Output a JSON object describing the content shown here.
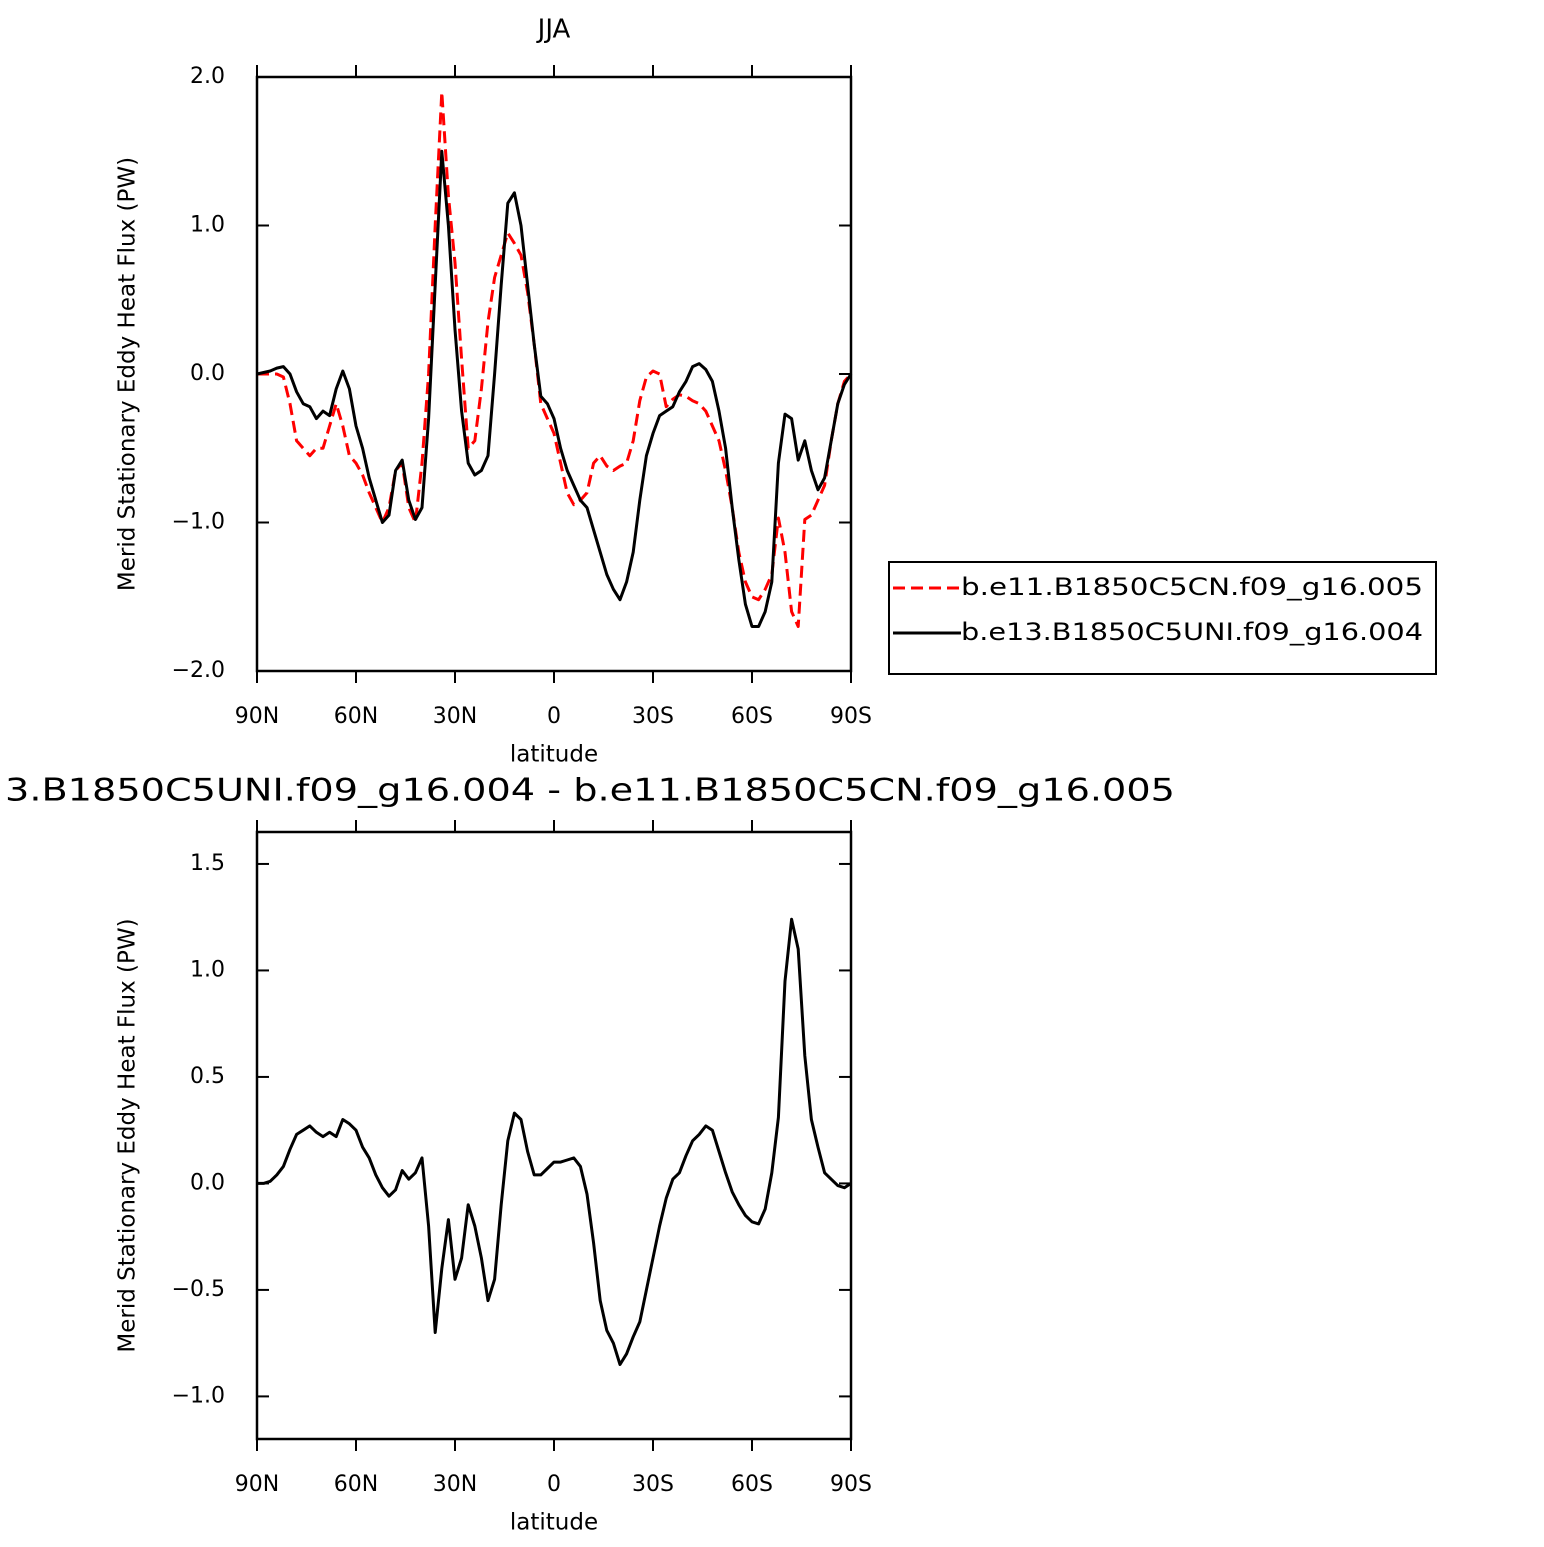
{
  "chart_data": [
    {
      "type": "line",
      "title": "JJA",
      "xlabel": "latitude",
      "ylabel": "Merid Stationary Eddy Heat Flux (PW)",
      "x": [
        90,
        88,
        86,
        84,
        82,
        80,
        78,
        76,
        74,
        72,
        70,
        68,
        66,
        64,
        62,
        60,
        58,
        56,
        54,
        52,
        50,
        48,
        46,
        44,
        42,
        40,
        38,
        36,
        34,
        32,
        30,
        28,
        26,
        24,
        22,
        20,
        18,
        16,
        14,
        12,
        10,
        8,
        6,
        4,
        2,
        0,
        -2,
        -4,
        -6,
        -8,
        -10,
        -12,
        -14,
        -16,
        -18,
        -20,
        -22,
        -24,
        -26,
        -28,
        -30,
        -32,
        -34,
        -36,
        -38,
        -40,
        -42,
        -44,
        -46,
        -48,
        -50,
        -52,
        -54,
        -56,
        -58,
        -60,
        -62,
        -64,
        -66,
        -68,
        -70,
        -72,
        -74,
        -76,
        -78,
        -80,
        -82,
        -84,
        -86,
        -88,
        -90
      ],
      "xlim": [
        90,
        -90
      ],
      "xticks": [
        {
          "value": 90,
          "label": "90N"
        },
        {
          "value": 60,
          "label": "60N"
        },
        {
          "value": 30,
          "label": "30N"
        },
        0,
        {
          "value": -30,
          "label": "30S"
        },
        {
          "value": -60,
          "label": "60S"
        },
        {
          "value": -90,
          "label": "90S"
        }
      ],
      "ylim": [
        -2,
        2
      ],
      "yticks": [
        {
          "value": -2,
          "label": "−2.0"
        },
        {
          "value": -1,
          "label": "−1.0"
        },
        {
          "value": 0,
          "label": "0.0"
        },
        {
          "value": 1,
          "label": "1.0"
        },
        {
          "value": 2,
          "label": "2.0"
        }
      ],
      "legend": "right",
      "series": [
        {
          "name": "b.e11.B1850C5CN.f09_g16.005",
          "color": "#ff0000",
          "dash": true,
          "values": [
            0,
            0,
            0,
            0,
            -0.02,
            -0.2,
            -0.45,
            -0.5,
            -0.55,
            -0.5,
            -0.5,
            -0.35,
            -0.2,
            -0.35,
            -0.55,
            -0.6,
            -0.68,
            -0.8,
            -0.9,
            -1.0,
            -0.9,
            -0.65,
            -0.6,
            -0.9,
            -1.0,
            -0.6,
            0.0,
            1.0,
            1.9,
            1.2,
            0.75,
            0.1,
            -0.5,
            -0.45,
            -0.1,
            0.35,
            0.65,
            0.8,
            0.95,
            0.88,
            0.8,
            0.55,
            0.2,
            -0.2,
            -0.3,
            -0.4,
            -0.6,
            -0.8,
            -0.88,
            -0.85,
            -0.8,
            -0.6,
            -0.55,
            -0.62,
            -0.65,
            -0.62,
            -0.6,
            -0.45,
            -0.18,
            -0.02,
            0.02,
            0.0,
            -0.22,
            -0.17,
            -0.14,
            -0.15,
            -0.18,
            -0.2,
            -0.25,
            -0.35,
            -0.45,
            -0.65,
            -0.9,
            -1.2,
            -1.4,
            -1.5,
            -1.52,
            -1.45,
            -1.35,
            -0.97,
            -1.2,
            -1.6,
            -1.7,
            -0.98,
            -0.95,
            -0.85,
            -0.75,
            -0.45,
            -0.2,
            -0.05,
            0
          ]
        },
        {
          "name": "b.e13.B1850C5UNI.f09_g16.004",
          "color": "#000000",
          "dash": false,
          "values": [
            0,
            0.01,
            0.02,
            0.04,
            0.05,
            0,
            -0.12,
            -0.2,
            -0.22,
            -0.3,
            -0.25,
            -0.28,
            -0.1,
            0.02,
            -0.1,
            -0.35,
            -0.5,
            -0.7,
            -0.85,
            -1.0,
            -0.95,
            -0.65,
            -0.58,
            -0.85,
            -0.98,
            -0.9,
            -0.3,
            0.6,
            1.5,
            1.0,
            0.3,
            -0.25,
            -0.6,
            -0.68,
            -0.65,
            -0.55,
            0,
            0.6,
            1.15,
            1.22,
            1.0,
            0.6,
            0.2,
            -0.15,
            -0.2,
            -0.3,
            -0.5,
            -0.65,
            -0.75,
            -0.85,
            -0.9,
            -1.05,
            -1.2,
            -1.35,
            -1.45,
            -1.52,
            -1.4,
            -1.2,
            -0.85,
            -0.55,
            -0.4,
            -0.28,
            -0.25,
            -0.22,
            -0.12,
            -0.05,
            0.05,
            0.07,
            0.03,
            -0.05,
            -0.25,
            -0.5,
            -0.9,
            -1.25,
            -1.55,
            -1.7,
            -1.7,
            -1.6,
            -1.4,
            -0.6,
            -0.27,
            -0.3,
            -0.58,
            -0.45,
            -0.65,
            -0.78,
            -0.7,
            -0.45,
            -0.2,
            -0.07,
            0
          ]
        }
      ]
    },
    {
      "type": "line",
      "title": "3.B1850C5UNI.f09_g16.004 - b.e11.B1850C5CN.f09_g16.005",
      "xlabel": "latitude",
      "ylabel": "Merid Stationary Eddy Heat Flux (PW)",
      "x": [
        90,
        88,
        86,
        84,
        82,
        80,
        78,
        76,
        74,
        72,
        70,
        68,
        66,
        64,
        62,
        60,
        58,
        56,
        54,
        52,
        50,
        48,
        46,
        44,
        42,
        40,
        38,
        36,
        34,
        32,
        30,
        28,
        26,
        24,
        22,
        20,
        18,
        16,
        14,
        12,
        10,
        8,
        6,
        4,
        2,
        0,
        -2,
        -4,
        -6,
        -8,
        -10,
        -12,
        -14,
        -16,
        -18,
        -20,
        -22,
        -24,
        -26,
        -28,
        -30,
        -32,
        -34,
        -36,
        -38,
        -40,
        -42,
        -44,
        -46,
        -48,
        -50,
        -52,
        -54,
        -56,
        -58,
        -60,
        -62,
        -64,
        -66,
        -68,
        -70,
        -72,
        -74,
        -76,
        -78,
        -80,
        -82,
        -84,
        -86,
        -88,
        -90
      ],
      "xlim": [
        90,
        -90
      ],
      "xticks": [
        {
          "value": 90,
          "label": "90N"
        },
        {
          "value": 60,
          "label": "60N"
        },
        {
          "value": 30,
          "label": "30N"
        },
        0,
        {
          "value": -30,
          "label": "30S"
        },
        {
          "value": -60,
          "label": "60S"
        },
        {
          "value": -90,
          "label": "90S"
        }
      ],
      "ylim": [
        -1.2,
        1.65
      ],
      "yticks": [
        {
          "value": -1,
          "label": "−1.0"
        },
        {
          "value": -0.5,
          "label": "−0.5"
        },
        {
          "value": 0,
          "label": "0.0"
        },
        0.5,
        {
          "value": 1,
          "label": "1.0"
        },
        1.5
      ],
      "series": [
        {
          "color": "#000000",
          "dash": false,
          "values": [
            0,
            0,
            0.01,
            0.04,
            0.08,
            0.16,
            0.23,
            0.25,
            0.27,
            0.24,
            0.22,
            0.24,
            0.22,
            0.3,
            0.28,
            0.25,
            0.17,
            0.12,
            0.04,
            -0.02,
            -0.06,
            -0.03,
            0.06,
            0.02,
            0.05,
            0.12,
            -0.2,
            -0.7,
            -0.4,
            -0.17,
            -0.45,
            -0.35,
            -0.1,
            -0.2,
            -0.35,
            -0.55,
            -0.45,
            -0.1,
            0.2,
            0.33,
            0.3,
            0.15,
            0.04,
            0.04,
            0.07,
            0.1,
            0.1,
            0.11,
            0.12,
            0.08,
            -0.05,
            -0.28,
            -0.55,
            -0.69,
            -0.75,
            -0.85,
            -0.8,
            -0.72,
            -0.65,
            -0.5,
            -0.35,
            -0.2,
            -0.07,
            0.02,
            0.05,
            0.13,
            0.2,
            0.23,
            0.27,
            0.25,
            0.15,
            0.05,
            -0.04,
            -0.1,
            -0.15,
            -0.18,
            -0.19,
            -0.12,
            0.05,
            0.31,
            0.95,
            1.24,
            1.1,
            0.6,
            0.3,
            0.17,
            0.05,
            0.02,
            -0.01,
            -0.02,
            0
          ]
        }
      ]
    }
  ]
}
